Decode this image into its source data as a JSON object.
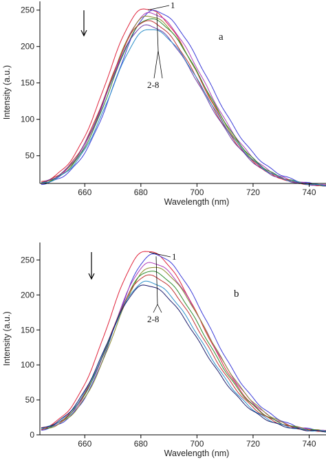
{
  "chart_data": [
    {
      "type": "line",
      "panel_label": "a",
      "xlabel": "Wavelength (nm)",
      "ylabel": "Intensity (a.u.)",
      "xlim": [
        644,
        746
      ],
      "ylim": [
        12,
        262
      ],
      "xticks": [
        660,
        680,
        700,
        720,
        740
      ],
      "yticks": [
        50,
        100,
        150,
        200,
        250
      ],
      "grid": false,
      "annotations": {
        "first_label": "1",
        "range_label": "2-8"
      },
      "series": [
        {
          "color": "#e0223a",
          "peak_x": 681.5,
          "peak_y": 252
        },
        {
          "color": "#3a3ad8",
          "peak_x": 684.5,
          "peak_y": 249
        },
        {
          "color": "#b03cb8",
          "peak_x": 683.0,
          "peak_y": 246
        },
        {
          "color": "#8a8a2a",
          "peak_x": 682.5,
          "peak_y": 242
        },
        {
          "color": "#2a8a2a",
          "peak_x": 683.0,
          "peak_y": 238
        },
        {
          "color": "#c03030",
          "peak_x": 682.0,
          "peak_y": 235
        },
        {
          "color": "#6a3aa8",
          "peak_x": 682.0,
          "peak_y": 229
        },
        {
          "color": "#2a8ec8",
          "peak_x": 683.0,
          "peak_y": 224
        }
      ]
    },
    {
      "type": "line",
      "panel_label": "b",
      "xlabel": "Wavelength (nm)",
      "ylabel": "Intensity (a.u.)",
      "xlim": [
        644,
        746
      ],
      "ylim": [
        0,
        275
      ],
      "xticks": [
        660,
        680,
        700,
        720,
        740
      ],
      "yticks": [
        0,
        50,
        100,
        150,
        200,
        250
      ],
      "grid": false,
      "annotations": {
        "first_label": "1",
        "range_label": "2-8"
      },
      "series": [
        {
          "color": "#e0223a",
          "peak_x": 682.0,
          "peak_y": 263
        },
        {
          "color": "#3a3ad8",
          "peak_x": 684.5,
          "peak_y": 258
        },
        {
          "color": "#b03cb8",
          "peak_x": 683.5,
          "peak_y": 246
        },
        {
          "color": "#8a8a2a",
          "peak_x": 684.0,
          "peak_y": 240
        },
        {
          "color": "#2a8a2a",
          "peak_x": 683.0,
          "peak_y": 234
        },
        {
          "color": "#c03030",
          "peak_x": 682.5,
          "peak_y": 228
        },
        {
          "color": "#2a8ec8",
          "peak_x": 682.0,
          "peak_y": 219
        },
        {
          "color": "#1a1a6a",
          "peak_x": 681.5,
          "peak_y": 214
        }
      ]
    }
  ]
}
